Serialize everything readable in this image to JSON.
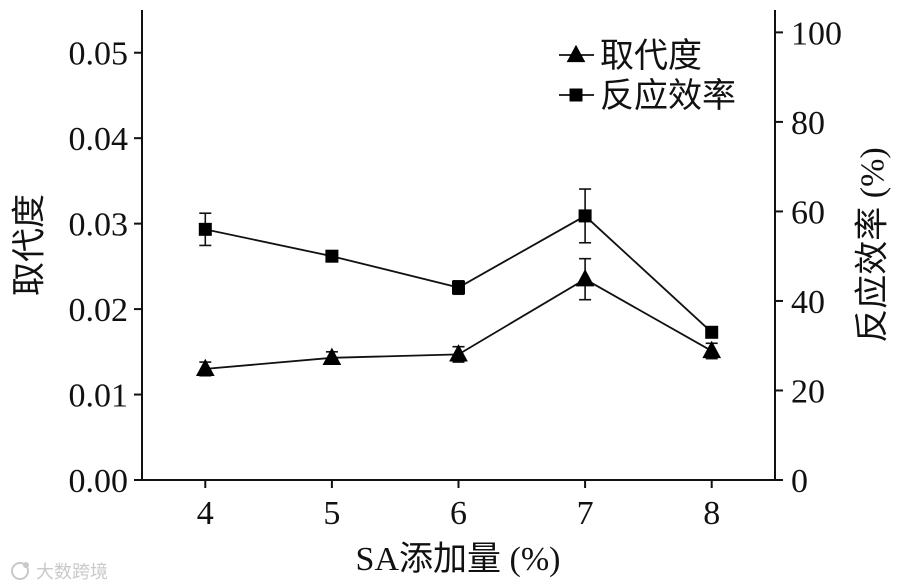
{
  "chart_data": {
    "type": "line",
    "categories": [
      4,
      5,
      6,
      7,
      8
    ],
    "xlabel": "SA添加量 (%)",
    "ylabel": "取代度",
    "y2label": "反应效率 (%)",
    "xlim": [
      3.5,
      8.5
    ],
    "ylim": [
      0,
      0.055
    ],
    "y2lim": [
      0,
      105
    ],
    "yticks": [
      "0.00",
      "0.01",
      "0.02",
      "0.03",
      "0.04",
      "0.05"
    ],
    "y2ticks": [
      "0",
      "20",
      "40",
      "60",
      "80",
      "100"
    ],
    "grid": false,
    "legend_position": "top-right",
    "line_color": "#000000",
    "series": [
      {
        "name": "取代度",
        "axis": "left",
        "marker": "triangle",
        "values": [
          0.013,
          0.0143,
          0.0147,
          0.0235,
          0.0151
        ],
        "errors": [
          0.0008,
          0.0007,
          0.0009,
          0.0024,
          0.0009
        ]
      },
      {
        "name": "反应效率",
        "axis": "right",
        "marker": "square",
        "values": [
          56,
          50,
          43,
          59,
          33
        ],
        "errors": [
          3.6,
          0.8,
          1.5,
          6.0,
          0.8
        ]
      }
    ]
  },
  "watermark": {
    "text": "大数跨境",
    "icon": "brand-logo-icon"
  }
}
